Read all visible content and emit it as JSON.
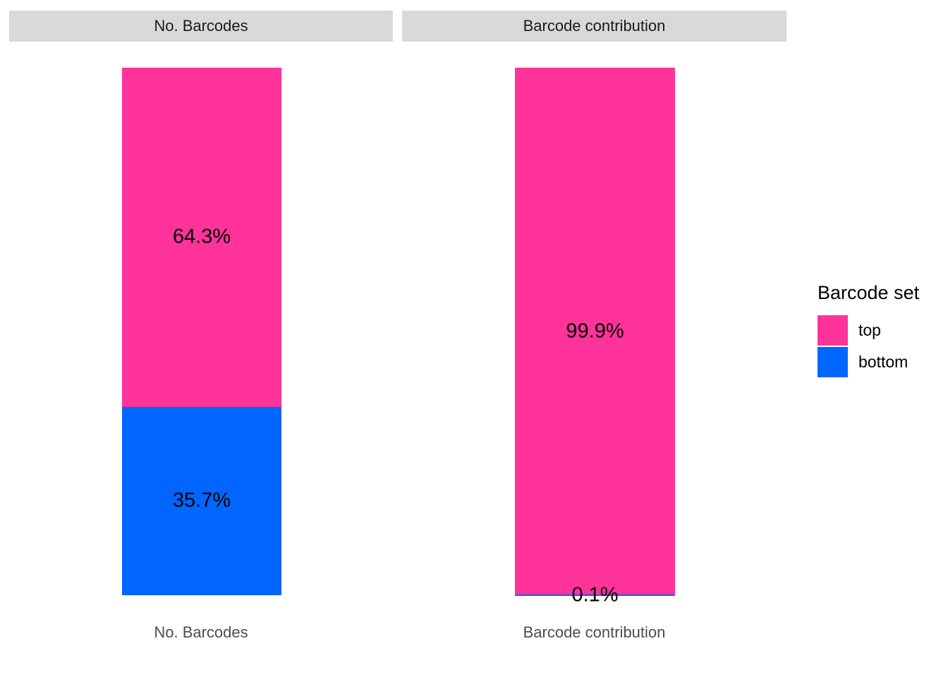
{
  "chart_data": {
    "type": "bar",
    "variant": "stacked-100-percent-column",
    "orientation": "vertical",
    "grid": "off",
    "axes": {
      "y_axis_visible": false,
      "y_range_percent": [
        0,
        100
      ]
    },
    "facets": [
      {
        "strip_label": "No. Barcodes",
        "x_tick_label": "No. Barcodes",
        "segments": [
          {
            "series": "top",
            "percent": 64.3,
            "label": "64.3%"
          },
          {
            "series": "bottom",
            "percent": 35.7,
            "label": "35.7%"
          }
        ]
      },
      {
        "strip_label": "Barcode contribution",
        "x_tick_label": "Barcode contribution",
        "segments": [
          {
            "series": "top",
            "percent": 99.9,
            "label": "99.9%"
          },
          {
            "series": "bottom",
            "percent": 0.1,
            "label": "0.1%"
          }
        ]
      }
    ],
    "legend": {
      "title": "Barcode set",
      "position": "right",
      "entries": [
        {
          "label": "top",
          "color": "#FF3399"
        },
        {
          "label": "bottom",
          "color": "#0066FF"
        }
      ]
    },
    "series_colors": {
      "top": "#FF3399",
      "bottom": "#0066FF"
    },
    "colors": {
      "strip_background": "#D9D9D9",
      "strip_text": "#1A1A1A",
      "axis_text": "#4D4D4D",
      "bar_label_text": "#000000",
      "legend_text": "#000000",
      "background": "#FFFFFF"
    }
  }
}
